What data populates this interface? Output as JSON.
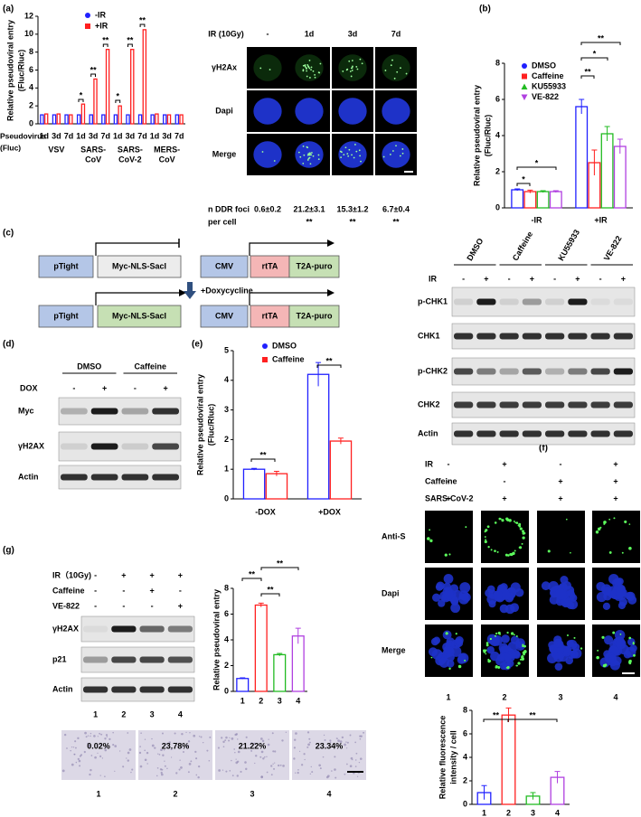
{
  "panel_labels": [
    "(a)",
    "(b)",
    "(c)",
    "(d)",
    "(e)",
    "(f)",
    "(g)"
  ],
  "chart_data": [
    {
      "type": "bar",
      "y_label": [
        "Relative pseudoviral entry",
        "(Fluc/Rluc)"
      ],
      "x_label": [
        "Pseudovirus",
        "(Fluc)"
      ],
      "categories": [
        "1d",
        "3d",
        "7d",
        "1d",
        "3d",
        "7d",
        "1d",
        "3d",
        "7d",
        "1d",
        "3d",
        "7d"
      ],
      "groups": [
        [
          "VSV"
        ],
        [
          "SARS-",
          "CoV"
        ],
        [
          "SARS-",
          "CoV-2"
        ],
        [
          "MERS-",
          "CoV"
        ]
      ],
      "series": [
        {
          "name": "-IR",
          "color": "#2020ff",
          "marker": "circle",
          "values": [
            1,
            1,
            1,
            1,
            1,
            1,
            1,
            1,
            1,
            1,
            1,
            1
          ]
        },
        {
          "name": "+IR",
          "color": "#ff2020",
          "marker": "square",
          "values": [
            1.1,
            1.1,
            1,
            2.2,
            5,
            8.3,
            2,
            8.3,
            10.5,
            1.1,
            1,
            1
          ]
        }
      ],
      "ylim": [
        0,
        12
      ],
      "yticks": [
        0,
        2,
        4,
        6,
        8,
        10,
        12
      ],
      "annotations": [
        "*",
        "**",
        "**",
        "*",
        "**",
        "**"
      ]
    },
    {
      "type": "bar",
      "y_label": [
        "Relative pseudoviral entry",
        "(Fluc/Rluc)"
      ],
      "categories": [
        "-IR",
        "+IR"
      ],
      "series": [
        {
          "name": "DMSO",
          "color": "#2020ff",
          "marker": "circle",
          "values": [
            1,
            5.6
          ],
          "errors": [
            0.05,
            0.4
          ]
        },
        {
          "name": "Caffeine",
          "color": "#ff2020",
          "marker": "square",
          "values": [
            0.9,
            2.5
          ],
          "errors": [
            0.08,
            0.7
          ]
        },
        {
          "name": "KU55933",
          "color": "#22bb22",
          "marker": "triangle",
          "values": [
            0.9,
            4.1
          ],
          "errors": [
            0.05,
            0.4
          ]
        },
        {
          "name": "VE-822",
          "color": "#b040e0",
          "marker": "triangle-down",
          "values": [
            0.9,
            3.4
          ],
          "errors": [
            0.05,
            0.4
          ]
        }
      ],
      "ylim": [
        0,
        8
      ],
      "yticks": [
        0,
        2,
        4,
        6,
        8
      ],
      "annotations": [
        "*",
        "*",
        "**",
        "*",
        "**"
      ]
    },
    {
      "type": "bar",
      "y_label": [
        "Relative pseudoviral entry",
        "(Fluc/Rluc)"
      ],
      "categories": [
        "-DOX",
        "+DOX"
      ],
      "series": [
        {
          "name": "DMSO",
          "color": "#2020ff",
          "marker": "circle",
          "values": [
            1,
            4.2
          ],
          "errors": [
            0.03,
            0.4
          ]
        },
        {
          "name": "Caffeine",
          "color": "#ff2020",
          "marker": "square",
          "values": [
            0.85,
            1.95
          ],
          "errors": [
            0.08,
            0.1
          ]
        }
      ],
      "ylim": [
        0,
        5
      ],
      "yticks": [
        0,
        1,
        2,
        3,
        4,
        5
      ],
      "annotations": [
        "**",
        "**"
      ]
    },
    {
      "type": "bar",
      "y_label": [
        "Relative pseudoviral entry"
      ],
      "categories": [
        "1",
        "2",
        "3",
        "4"
      ],
      "values": [
        1,
        6.7,
        2.85,
        4.3
      ],
      "errors": [
        0.05,
        0.15,
        0.1,
        0.6
      ],
      "colors": [
        "#2020ff",
        "#ff2020",
        "#22bb22",
        "#b040e0"
      ],
      "ylim": [
        0,
        8
      ],
      "yticks": [
        0,
        2,
        4,
        6,
        8
      ],
      "annotations": [
        "**",
        "**",
        "**"
      ]
    },
    {
      "type": "bar",
      "y_label": [
        "Relative fluorescence",
        "intensity / cell"
      ],
      "categories": [
        "1",
        "2",
        "3",
        "4"
      ],
      "values": [
        1,
        7.6,
        0.7,
        2.3
      ],
      "errors": [
        0.6,
        0.6,
        0.3,
        0.5
      ],
      "colors": [
        "#2020ff",
        "#ff2020",
        "#22bb22",
        "#b040e0"
      ],
      "ylim": [
        0,
        8
      ],
      "yticks": [
        0,
        2,
        4,
        6,
        8
      ],
      "annotations": [
        "**",
        "**"
      ]
    }
  ],
  "panel_a_images": {
    "header": "IR (10Gy)",
    "conditions": [
      "-",
      "1d",
      "3d",
      "7d"
    ],
    "rows": [
      "γH2Ax",
      "Dapi",
      "Merge"
    ],
    "foci_label": [
      "n DDR foci",
      "per cell"
    ],
    "foci": [
      "0.6±0.2",
      "21.2±3.1",
      "15.3±1.2",
      "6.7±0.4"
    ],
    "significance": [
      "**",
      "**",
      "**"
    ]
  },
  "panel_b_blot": {
    "treatments": [
      "DMSO",
      "Caffeine",
      "KU55933",
      "VE-822"
    ],
    "ir_label": "IR",
    "ir_signs": [
      "-",
      "+",
      "-",
      "+",
      "-",
      "+",
      "-",
      "+"
    ],
    "rows": [
      "p-CHK1",
      "CHK1",
      "p-CHK2",
      "CHK2",
      "Actin"
    ]
  },
  "panel_c_diagram": {
    "before": [
      "pTight",
      "Myc-NLS-SacI",
      "CMV",
      "rtTA",
      "T2A-puro"
    ],
    "inducer": "+Doxycycline",
    "after": [
      "pTight",
      "Myc-NLS-SacI",
      "CMV",
      "rtTA",
      "T2A-puro"
    ]
  },
  "panel_d_blot": {
    "treatments": [
      "DMSO",
      "Caffeine"
    ],
    "condition": "DOX",
    "signs": [
      "-",
      "+",
      "-",
      "+"
    ],
    "rows": [
      "Myc",
      "γH2AX",
      "Actin"
    ]
  },
  "panel_g_blot": {
    "conditions": [
      {
        "name": "IR（10Gy)",
        "signs": [
          "-",
          "+",
          "+",
          "+"
        ]
      },
      {
        "name": "Caffeine",
        "signs": [
          "-",
          "-",
          "+",
          "-"
        ]
      },
      {
        "name": "VE-822",
        "signs": [
          "-",
          "-",
          "-",
          "+"
        ]
      }
    ],
    "rows": [
      "γH2AX",
      "p21",
      "Actin"
    ],
    "lanes": [
      "1",
      "2",
      "3",
      "4"
    ]
  },
  "panel_g_images": {
    "labels": [
      "0.02%",
      "23.78%",
      "21.22%",
      "23.34%"
    ],
    "lanes": [
      "1",
      "2",
      "3",
      "4"
    ]
  },
  "panel_f_images": {
    "conditions": [
      {
        "name": "IR",
        "signs": [
          "-",
          "+",
          "-",
          "+"
        ]
      },
      {
        "name": "Caffeine",
        "signs": [
          "-",
          "-",
          "+",
          "+"
        ]
      },
      {
        "name": "SARS-CoV-2",
        "signs": [
          "+",
          "+",
          "+",
          "+"
        ]
      }
    ],
    "rows": [
      "Anti-S",
      "Dapi",
      "Merge"
    ],
    "lanes": [
      "1",
      "2",
      "3",
      "4"
    ]
  }
}
